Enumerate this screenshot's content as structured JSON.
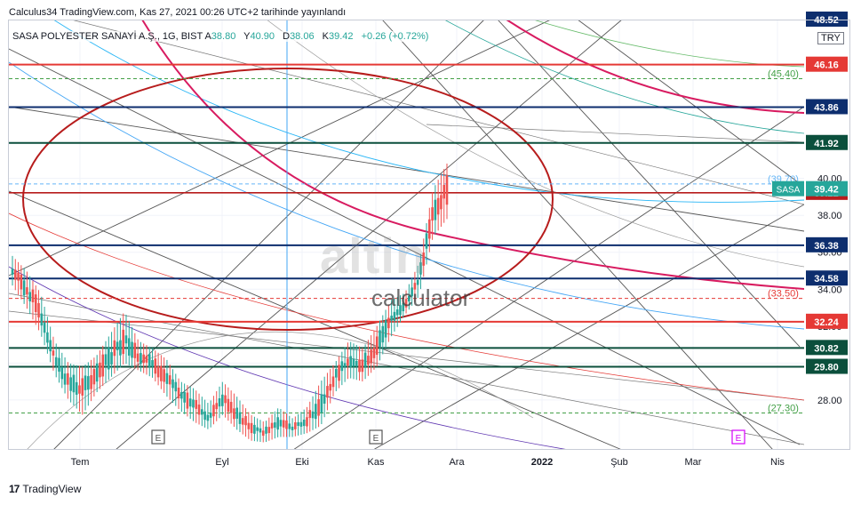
{
  "header": {
    "title": "Calculus34 TradingView.com, Kas 27, 2021 00:26 UTC+2 tarihinde yayınlandı"
  },
  "legend": {
    "symbol": "SASA POLYESTER SANAYİ A.Ş., 1G, BIST",
    "o_label": "A",
    "o": "38.80",
    "h_label": "Y",
    "h": "40.90",
    "l_label": "D",
    "l": "38.06",
    "c_label": "K",
    "c": "39.42",
    "change": "+0.26 (+0.72%)"
  },
  "currency": "TRY",
  "watermark": {
    "brand": "altin",
    "sub": "calculator"
  },
  "footer": {
    "logo": "17",
    "brand": "TradingView"
  },
  "colors": {
    "up": "#26a69a",
    "down": "#ef5350",
    "navy": "#0d2e6e",
    "red": "#e53935",
    "darkgreen": "#0b4f3c",
    "ellipse": "#b71c1c"
  },
  "chart_data": {
    "type": "candlestick",
    "symbol": "SASA",
    "ylim": [
      25.3,
      48.6
    ],
    "x_ticks": [
      "Tem",
      "Eyl",
      "Eki",
      "Kas",
      "Ara",
      "2022",
      "Şub",
      "Mar",
      "Nis"
    ],
    "y_ticks": [
      28.0,
      30.0,
      32.0,
      34.0,
      36.0,
      38.0,
      40.0
    ],
    "last_price": {
      "label": "SASA",
      "value": 39.42,
      "color": "#26a69a"
    },
    "horizontal_levels": [
      {
        "value": 46.16,
        "color": "#e53935",
        "label": "46.16"
      },
      {
        "value": 43.86,
        "color": "#0d2e6e",
        "label": "43.86"
      },
      {
        "value": 41.92,
        "color": "#0b4f3c",
        "label": "41.92"
      },
      {
        "value": 39.22,
        "color": "#b71c1c",
        "label": "39.22"
      },
      {
        "value": 36.38,
        "color": "#0d2e6e",
        "label": "36.38"
      },
      {
        "value": 34.58,
        "color": "#0d2e6e",
        "label": "34.58"
      },
      {
        "value": 32.24,
        "color": "#e53935",
        "label": "32.24"
      },
      {
        "value": 30.82,
        "color": "#0b4f3c",
        "label": "30.82"
      },
      {
        "value": 29.8,
        "color": "#0b4f3c",
        "label": "29.80"
      }
    ],
    "top_cut_label": "48.52",
    "dashed_levels": [
      {
        "value": 45.4,
        "label": "(45.40)",
        "color": "#43a047"
      },
      {
        "value": 39.7,
        "label": "(39.70)",
        "color": "#64b5f6"
      },
      {
        "value": 33.5,
        "label": "(33.50)",
        "color": "#e53935"
      },
      {
        "value": 27.3,
        "label": "(27.30)",
        "color": "#43a047"
      }
    ],
    "event_markers": [
      "E",
      "E",
      "E"
    ],
    "ohlc_keypoints": [
      [
        35.6,
        34.4
      ],
      [
        34.8,
        33.2
      ],
      [
        33.6,
        31.8
      ],
      [
        31.0,
        29.6
      ],
      [
        29.8,
        28.2
      ],
      [
        29.6,
        27.4
      ],
      [
        30.2,
        28.6
      ],
      [
        31.4,
        29.4
      ],
      [
        32.6,
        30.2
      ],
      [
        31.0,
        29.8
      ],
      [
        30.6,
        29.4
      ],
      [
        30.0,
        28.4
      ],
      [
        28.8,
        27.6
      ],
      [
        28.4,
        27.0
      ],
      [
        27.6,
        26.6
      ],
      [
        28.8,
        27.4
      ],
      [
        28.0,
        26.6
      ],
      [
        27.0,
        26.0
      ],
      [
        26.6,
        25.9
      ],
      [
        27.4,
        26.2
      ],
      [
        26.8,
        26.2
      ],
      [
        27.4,
        26.4
      ],
      [
        28.8,
        26.8
      ],
      [
        29.8,
        28.6
      ],
      [
        31.0,
        29.4
      ],
      [
        30.6,
        29.2
      ],
      [
        31.8,
        30.0
      ],
      [
        33.2,
        31.6
      ],
      [
        33.6,
        32.8
      ],
      [
        35.2,
        33.8
      ],
      [
        39.2,
        37.0
      ],
      [
        40.6,
        38.0
      ]
    ]
  }
}
